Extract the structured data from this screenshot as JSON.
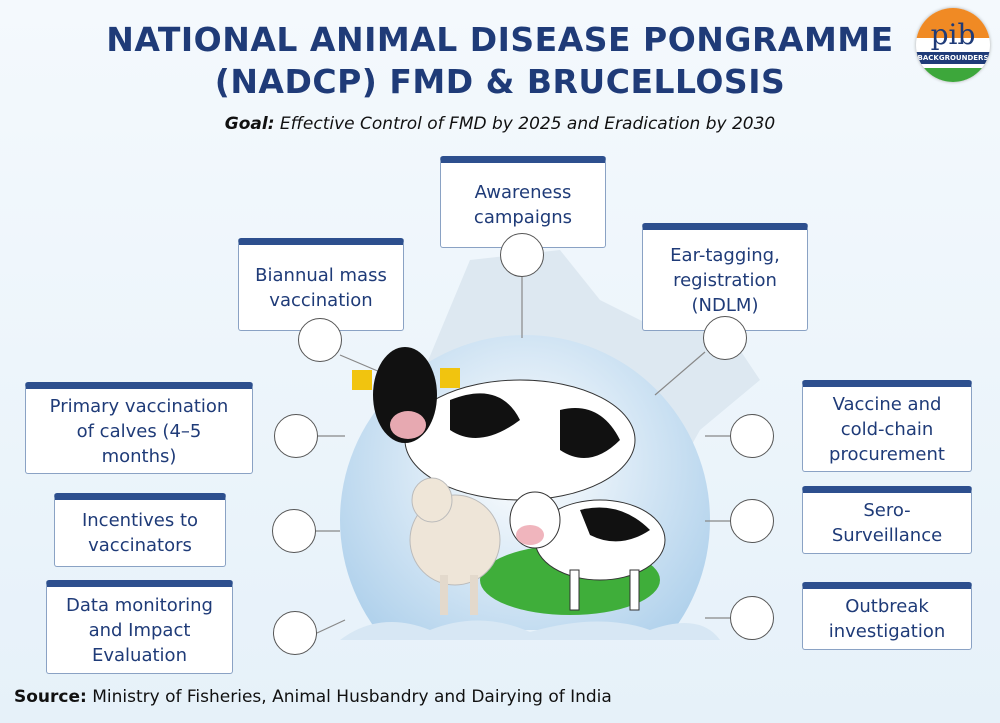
{
  "header": {
    "title_lines": [
      "NATIONAL ANIMAL DISEASE PONGRAMME",
      "(NADCP) FMD & BRUCELLOSIS"
    ],
    "goal_label": "Goal:",
    "goal_text": "Effective Control of FMD by 2025 and Eradication by 2030"
  },
  "logo": {
    "text": "pib",
    "subtext": "BACKGROUNDERS"
  },
  "measures": [
    {
      "lines": [
        "Awareness",
        "campaigns"
      ]
    },
    {
      "lines": [
        "Biannual mass",
        "vaccination"
      ]
    },
    {
      "lines": [
        "Ear-tagging,",
        "registration",
        "(NDLM)"
      ]
    },
    {
      "lines": [
        "Primary vaccination",
        "of calves (4–5",
        "months)"
      ]
    },
    {
      "lines": [
        "Vaccine and",
        "cold-chain",
        "procurement"
      ]
    },
    {
      "lines": [
        "Incentives to",
        "vaccinators"
      ]
    },
    {
      "lines": [
        "Sero-",
        "Surveillance"
      ]
    },
    {
      "lines": [
        "Data monitoring",
        "and Impact",
        "Evaluation"
      ]
    },
    {
      "lines": [
        "Outbreak",
        "investigation"
      ]
    }
  ],
  "source": {
    "label": "Source:",
    "text": "Ministry of Fisheries, Animal Husbandry and Dairying of India"
  }
}
